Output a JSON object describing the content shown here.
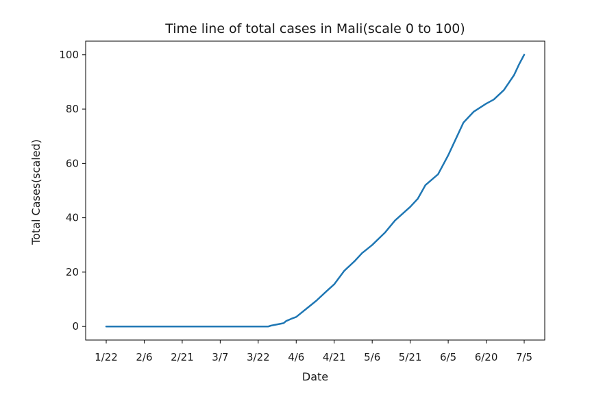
{
  "chart_data": {
    "type": "line",
    "title": "Time line of total cases in Mali(scale 0 to 100)",
    "xlabel": "Date",
    "ylabel": "Total Cases(scaled)",
    "x_tick_labels": [
      "1/22",
      "2/6",
      "2/21",
      "3/7",
      "3/22",
      "4/6",
      "4/21",
      "5/6",
      "5/21",
      "6/5",
      "6/20",
      "7/5"
    ],
    "x_range": [
      "1/22",
      "7/5"
    ],
    "y_ticks": [
      0,
      20,
      40,
      60,
      80,
      100
    ],
    "ylim": [
      -5,
      105
    ],
    "grid": false,
    "series": [
      {
        "color": "#1f77b4",
        "x": [
          "1/22",
          "2/6",
          "2/21",
          "3/7",
          "3/22",
          "3/26",
          "3/27",
          "4/1",
          "4/2",
          "4/4",
          "4/6",
          "4/10",
          "4/14",
          "4/18",
          "4/21",
          "4/25",
          "4/29",
          "5/2",
          "5/6",
          "5/11",
          "5/15",
          "5/21",
          "5/24",
          "5/27",
          "6/1",
          "6/5",
          "6/8",
          "6/11",
          "6/15",
          "6/20",
          "6/23",
          "6/27",
          "7/1",
          "7/3",
          "7/5"
        ],
        "y": [
          0,
          0,
          0,
          0,
          0,
          0,
          0.3,
          1.2,
          2.0,
          2.8,
          3.5,
          6.5,
          9.5,
          13,
          15.5,
          20.5,
          24,
          27,
          30,
          34.5,
          39,
          44,
          47,
          52,
          56,
          63,
          69,
          75,
          79,
          82,
          83.5,
          87,
          92.5,
          96.5,
          100
        ]
      }
    ]
  }
}
